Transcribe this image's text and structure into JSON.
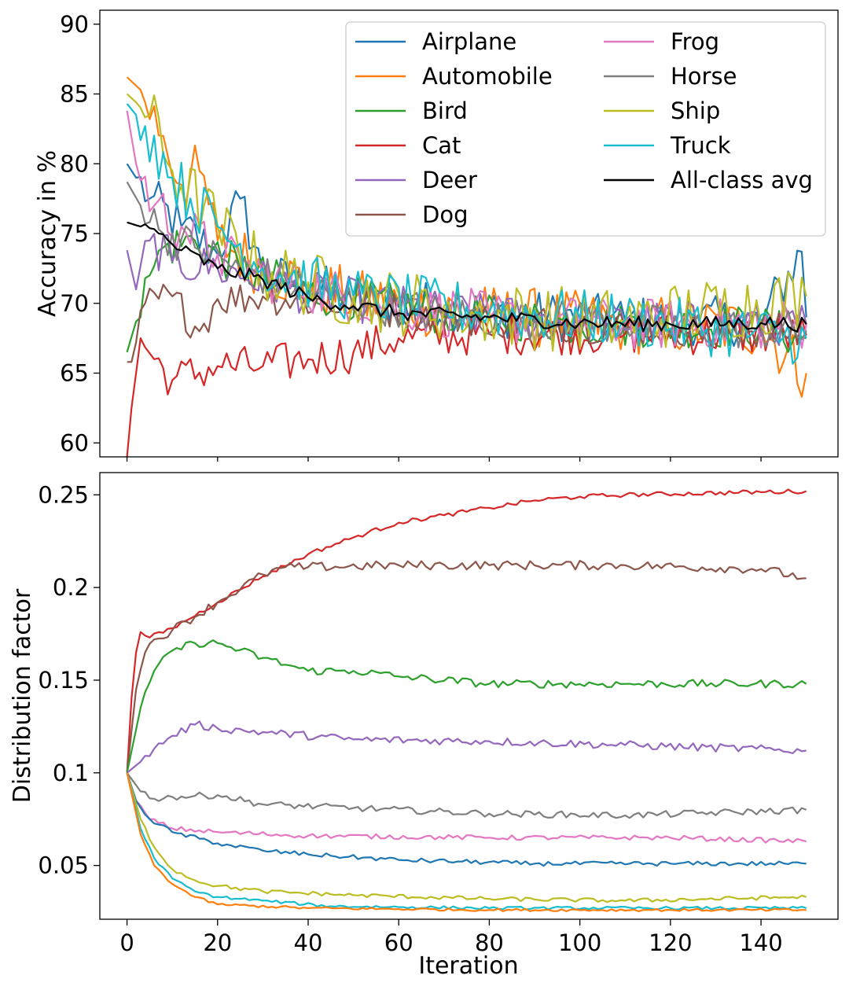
{
  "chart_data": [
    {
      "type": "line",
      "panel": "top",
      "xlabel": "",
      "ylabel": "Accuracy in %",
      "xlim": [
        -6,
        157
      ],
      "ylim": [
        59,
        91
      ],
      "xticks": [
        0,
        20,
        40,
        60,
        80,
        100,
        120,
        140
      ],
      "yticks": [
        60,
        65,
        70,
        75,
        80,
        85,
        90
      ],
      "ytick_labels": [
        "60",
        "65",
        "70",
        "75",
        "80",
        "85",
        "90"
      ],
      "legend_position": "top-right",
      "legend_columns": 2,
      "series": [
        {
          "name": "Airplane",
          "color": "#1f77b4",
          "anchors": [
            [
              0,
              80
            ],
            [
              5,
              77.5
            ],
            [
              12,
              75.5
            ],
            [
              20,
              73.5
            ],
            [
              25,
              77.5
            ],
            [
              30,
              72
            ],
            [
              50,
              70.5
            ],
            [
              80,
              69.3
            ],
            [
              110,
              68.8
            ],
            [
              140,
              68.7
            ],
            [
              149,
              73.7
            ],
            [
              150,
              69
            ]
          ],
          "noise": 1.8
        },
        {
          "name": "Automobile",
          "color": "#ff7f0e",
          "anchors": [
            [
              0,
              86.2
            ],
            [
              3,
              85.3
            ],
            [
              8,
              82
            ],
            [
              12,
              78.5
            ],
            [
              16,
              79.5
            ],
            [
              20,
              74.5
            ],
            [
              30,
              72.5
            ],
            [
              50,
              70.3
            ],
            [
              80,
              69.2
            ],
            [
              110,
              68.5
            ],
            [
              140,
              68.2
            ],
            [
              150,
              65
            ]
          ],
          "noise": 2.2
        },
        {
          "name": "Bird",
          "color": "#2ca02c",
          "anchors": [
            [
              0,
              66.5
            ],
            [
              2,
              68.7
            ],
            [
              5,
              72
            ],
            [
              8,
              74
            ],
            [
              15,
              74.5
            ],
            [
              25,
              72.5
            ],
            [
              40,
              70.8
            ],
            [
              70,
              69.3
            ],
            [
              100,
              68.5
            ],
            [
              140,
              68.3
            ],
            [
              150,
              67.5
            ]
          ],
          "noise": 1.6
        },
        {
          "name": "Cat",
          "color": "#d62728",
          "anchors": [
            [
              0,
              59
            ],
            [
              1,
              62.5
            ],
            [
              3,
              67.5
            ],
            [
              6,
              66
            ],
            [
              10,
              64.5
            ],
            [
              20,
              65.5
            ],
            [
              30,
              65.5
            ],
            [
              40,
              66
            ],
            [
              50,
              66.5
            ],
            [
              60,
              67.5
            ],
            [
              80,
              67.8
            ],
            [
              110,
              67.8
            ],
            [
              150,
              67.7
            ]
          ],
          "noise": 1.5
        },
        {
          "name": "Deer",
          "color": "#9467bd",
          "anchors": [
            [
              0,
              73.8
            ],
            [
              2,
              71
            ],
            [
              5,
              74.5
            ],
            [
              10,
              73
            ],
            [
              20,
              72.5
            ],
            [
              40,
              70.7
            ],
            [
              70,
              69.3
            ],
            [
              100,
              68.7
            ],
            [
              150,
              68.5
            ]
          ],
          "noise": 1.6
        },
        {
          "name": "Dog",
          "color": "#8c564b",
          "anchors": [
            [
              0,
              65.8
            ],
            [
              1,
              65.8
            ],
            [
              4,
              70
            ],
            [
              10,
              70.5
            ],
            [
              16,
              68
            ],
            [
              20,
              70.3
            ],
            [
              30,
              70.5
            ],
            [
              50,
              69.8
            ],
            [
              80,
              68.8
            ],
            [
              110,
              68.3
            ],
            [
              150,
              68
            ]
          ],
          "noise": 1.3
        },
        {
          "name": "Frog",
          "color": "#e377c2",
          "anchors": [
            [
              0,
              83.8
            ],
            [
              2,
              80
            ],
            [
              6,
              77
            ],
            [
              12,
              75.5
            ],
            [
              20,
              73.5
            ],
            [
              30,
              72
            ],
            [
              50,
              70.3
            ],
            [
              80,
              69
            ],
            [
              110,
              68.5
            ],
            [
              150,
              68.5
            ]
          ],
          "noise": 1.9
        },
        {
          "name": "Horse",
          "color": "#7f7f7f",
          "anchors": [
            [
              0,
              78.7
            ],
            [
              3,
              77
            ],
            [
              8,
              75
            ],
            [
              15,
              74
            ],
            [
              25,
              72.5
            ],
            [
              45,
              70.5
            ],
            [
              70,
              69.2
            ],
            [
              110,
              68.5
            ],
            [
              150,
              68
            ]
          ],
          "noise": 1.5
        },
        {
          "name": "Ship",
          "color": "#bcbd22",
          "anchors": [
            [
              0,
              85
            ],
            [
              5,
              83.5
            ],
            [
              10,
              79.5
            ],
            [
              20,
              75.5
            ],
            [
              30,
              72.3
            ],
            [
              50,
              70.5
            ],
            [
              80,
              69.2
            ],
            [
              110,
              68.7
            ],
            [
              150,
              70.5
            ]
          ],
          "noise": 2.4
        },
        {
          "name": "Truck",
          "color": "#17becf",
          "anchors": [
            [
              0,
              84.3
            ],
            [
              4,
              82.7
            ],
            [
              10,
              79
            ],
            [
              20,
              75.5
            ],
            [
              30,
              72.5
            ],
            [
              50,
              70.6
            ],
            [
              80,
              69.4
            ],
            [
              110,
              68.8
            ],
            [
              150,
              67.5
            ]
          ],
          "noise": 2.0
        },
        {
          "name": "All-class avg",
          "color": "#000000",
          "anchors": [
            [
              0,
              75.8
            ],
            [
              3,
              75.5
            ],
            [
              7,
              75
            ],
            [
              12,
              73.8
            ],
            [
              20,
              72.5
            ],
            [
              30,
              71.7
            ],
            [
              40,
              70.4
            ],
            [
              50,
              69.8
            ],
            [
              60,
              69.3
            ],
            [
              80,
              69
            ],
            [
              100,
              68.6
            ],
            [
              120,
              68.5
            ],
            [
              140,
              68.6
            ],
            [
              150,
              68.5
            ]
          ],
          "noise": 0.55
        }
      ]
    },
    {
      "type": "line",
      "panel": "bottom",
      "xlabel": "Iteration",
      "ylabel": "Distribution factor",
      "xlim": [
        -6,
        157
      ],
      "ylim": [
        0.021,
        0.262
      ],
      "xticks": [
        0,
        20,
        40,
        60,
        80,
        100,
        120,
        140
      ],
      "xtick_labels": [
        "0",
        "20",
        "40",
        "60",
        "80",
        "100",
        "120",
        "140"
      ],
      "yticks": [
        0.05,
        0.1,
        0.15,
        0.2,
        0.25
      ],
      "ytick_labels": [
        "0.05",
        "0.1",
        "0.15",
        "0.2",
        "0.25"
      ],
      "series": [
        {
          "name": "Cat",
          "color": "#d62728",
          "anchors": [
            [
              0,
              0.1
            ],
            [
              1,
              0.14
            ],
            [
              2,
              0.165
            ],
            [
              3,
              0.176
            ],
            [
              5,
              0.173
            ],
            [
              10,
              0.178
            ],
            [
              20,
              0.192
            ],
            [
              30,
              0.206
            ],
            [
              40,
              0.218
            ],
            [
              50,
              0.227
            ],
            [
              60,
              0.235
            ],
            [
              70,
              0.239
            ],
            [
              80,
              0.243
            ],
            [
              90,
              0.247
            ],
            [
              100,
              0.249
            ],
            [
              110,
              0.25
            ],
            [
              150,
              0.252
            ]
          ],
          "noise": 0.0012
        },
        {
          "name": "Dog",
          "color": "#8c564b",
          "anchors": [
            [
              0,
              0.1
            ],
            [
              2,
              0.145
            ],
            [
              4,
              0.165
            ],
            [
              6,
              0.172
            ],
            [
              10,
              0.177
            ],
            [
              20,
              0.192
            ],
            [
              30,
              0.207
            ],
            [
              35,
              0.211
            ],
            [
              40,
              0.211
            ],
            [
              60,
              0.212
            ],
            [
              80,
              0.212
            ],
            [
              110,
              0.212
            ],
            [
              140,
              0.21
            ],
            [
              150,
              0.205
            ]
          ],
          "noise": 0.0025
        },
        {
          "name": "Bird",
          "color": "#2ca02c",
          "anchors": [
            [
              0,
              0.1
            ],
            [
              3,
              0.135
            ],
            [
              6,
              0.155
            ],
            [
              10,
              0.166
            ],
            [
              15,
              0.17
            ],
            [
              20,
              0.17
            ],
            [
              30,
              0.162
            ],
            [
              40,
              0.155
            ],
            [
              50,
              0.155
            ],
            [
              60,
              0.152
            ],
            [
              80,
              0.148
            ],
            [
              110,
              0.148
            ],
            [
              150,
              0.148
            ]
          ],
          "noise": 0.0022
        },
        {
          "name": "Deer",
          "color": "#9467bd",
          "anchors": [
            [
              0,
              0.1
            ],
            [
              3,
              0.106
            ],
            [
              6,
              0.113
            ],
            [
              10,
              0.12
            ],
            [
              15,
              0.126
            ],
            [
              20,
              0.124
            ],
            [
              30,
              0.122
            ],
            [
              50,
              0.118
            ],
            [
              80,
              0.117
            ],
            [
              110,
              0.115
            ],
            [
              150,
              0.112
            ]
          ],
          "noise": 0.0022
        },
        {
          "name": "Horse",
          "color": "#7f7f7f",
          "anchors": [
            [
              0,
              0.1
            ],
            [
              3,
              0.09
            ],
            [
              6,
              0.086
            ],
            [
              10,
              0.087
            ],
            [
              20,
              0.088
            ],
            [
              30,
              0.083
            ],
            [
              50,
              0.081
            ],
            [
              80,
              0.078
            ],
            [
              110,
              0.077
            ],
            [
              150,
              0.08
            ]
          ],
          "noise": 0.0018
        },
        {
          "name": "Frog",
          "color": "#e377c2",
          "anchors": [
            [
              0,
              0.1
            ],
            [
              2,
              0.085
            ],
            [
              5,
              0.075
            ],
            [
              10,
              0.07
            ],
            [
              20,
              0.068
            ],
            [
              40,
              0.066
            ],
            [
              80,
              0.065
            ],
            [
              120,
              0.065
            ],
            [
              150,
              0.063
            ]
          ],
          "noise": 0.0013
        },
        {
          "name": "Airplane",
          "color": "#1f77b4",
          "anchors": [
            [
              0,
              0.1
            ],
            [
              2,
              0.085
            ],
            [
              5,
              0.075
            ],
            [
              10,
              0.068
            ],
            [
              20,
              0.062
            ],
            [
              30,
              0.058
            ],
            [
              40,
              0.056
            ],
            [
              60,
              0.053
            ],
            [
              90,
              0.051
            ],
            [
              120,
              0.051
            ],
            [
              150,
              0.051
            ]
          ],
          "noise": 0.0012
        },
        {
          "name": "Ship",
          "color": "#bcbd22",
          "anchors": [
            [
              0,
              0.1
            ],
            [
              3,
              0.075
            ],
            [
              6,
              0.06
            ],
            [
              10,
              0.048
            ],
            [
              15,
              0.042
            ],
            [
              20,
              0.039
            ],
            [
              30,
              0.036
            ],
            [
              50,
              0.034
            ],
            [
              80,
              0.032
            ],
            [
              110,
              0.031
            ],
            [
              150,
              0.033
            ]
          ],
          "noise": 0.0011
        },
        {
          "name": "Truck",
          "color": "#17becf",
          "anchors": [
            [
              0,
              0.1
            ],
            [
              3,
              0.07
            ],
            [
              6,
              0.054
            ],
            [
              10,
              0.043
            ],
            [
              15,
              0.036
            ],
            [
              20,
              0.033
            ],
            [
              30,
              0.031
            ],
            [
              45,
              0.028
            ],
            [
              80,
              0.027
            ],
            [
              120,
              0.027
            ],
            [
              150,
              0.027
            ]
          ],
          "noise": 0.0008
        },
        {
          "name": "Automobile",
          "color": "#ff7f0e",
          "anchors": [
            [
              0,
              0.1
            ],
            [
              3,
              0.067
            ],
            [
              6,
              0.05
            ],
            [
              10,
              0.04
            ],
            [
              15,
              0.033
            ],
            [
              20,
              0.029
            ],
            [
              40,
              0.027
            ],
            [
              80,
              0.026
            ],
            [
              120,
              0.026
            ],
            [
              150,
              0.026
            ]
          ],
          "noise": 0.0007
        }
      ]
    }
  ]
}
